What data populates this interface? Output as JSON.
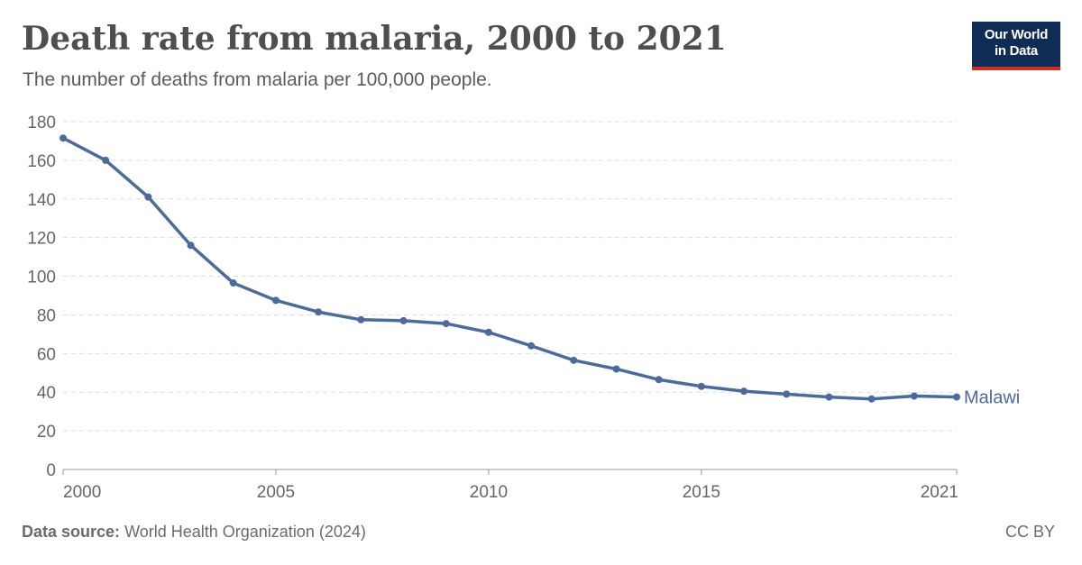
{
  "header": {
    "title": "Death rate from malaria, 2000 to 2021",
    "subtitle": "The number of deaths from malaria per 100,000 people."
  },
  "logo": {
    "line1": "Our World",
    "line2": "in Data"
  },
  "footer": {
    "source_label": "Data source:",
    "source_text": "World Health Organization (2024)",
    "license": "CC BY"
  },
  "colors": {
    "series": "#4c6a9c",
    "grid": "#dddddd",
    "axis": "#666666",
    "logo_bg": "#0e2c55",
    "logo_accent": "#d42b21"
  },
  "chart_data": {
    "type": "line",
    "xlim": [
      2000,
      2021
    ],
    "ylim": [
      0,
      180
    ],
    "yticks": [
      0,
      20,
      40,
      60,
      80,
      100,
      120,
      140,
      160,
      180
    ],
    "xticks": [
      2000,
      2005,
      2010,
      2015,
      2021
    ],
    "grid": true,
    "series": [
      {
        "name": "Malawi",
        "x": [
          2000,
          2001,
          2002,
          2003,
          2004,
          2005,
          2006,
          2007,
          2008,
          2009,
          2010,
          2011,
          2012,
          2013,
          2014,
          2015,
          2016,
          2017,
          2018,
          2019,
          2020,
          2021
        ],
        "y": [
          171.5,
          160,
          141,
          116,
          96.5,
          87.5,
          81.5,
          77.5,
          77,
          75.5,
          71,
          64,
          56.5,
          52,
          46.5,
          43,
          40.5,
          39,
          37.5,
          36.5,
          38,
          37.5
        ]
      }
    ]
  }
}
